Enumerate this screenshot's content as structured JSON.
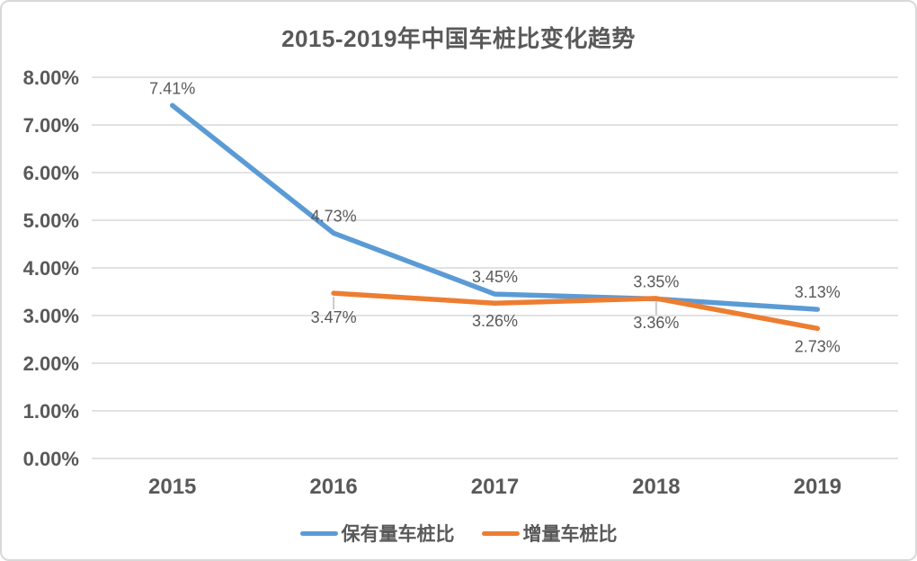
{
  "chart_data": {
    "type": "line",
    "title": "2015-2019年中国车桩比变化趋势",
    "categories": [
      "2015",
      "2016",
      "2017",
      "2018",
      "2019"
    ],
    "series": [
      {
        "name": "保有量车桩比",
        "color": "#5B9BD5",
        "values": [
          7.41,
          4.73,
          3.45,
          3.35,
          3.13
        ],
        "data_labels": [
          "7.41%",
          "4.73%",
          "3.45%",
          "3.35%",
          "3.13%"
        ],
        "label_side": "above",
        "label_leaders": [
          false,
          false,
          false,
          false,
          false
        ]
      },
      {
        "name": "增量车桩比",
        "color": "#ED7D31",
        "values": [
          null,
          3.47,
          3.26,
          3.36,
          2.73
        ],
        "data_labels": [
          null,
          "3.47%",
          "3.26%",
          "3.36%",
          "2.73%"
        ],
        "label_side": "below",
        "label_leaders": [
          false,
          true,
          false,
          true,
          false
        ]
      }
    ],
    "y_ticks": [
      "8.00%",
      "7.00%",
      "6.00%",
      "5.00%",
      "4.00%",
      "3.00%",
      "2.00%",
      "1.00%",
      "0.00%"
    ],
    "ylim": [
      0,
      8
    ],
    "grid": true,
    "legend_position": "bottom",
    "text_color": "#595959",
    "grid_color": "#D9D9D9",
    "leader_color": "#BFBFBF",
    "background_color": "#FFFFFF"
  }
}
